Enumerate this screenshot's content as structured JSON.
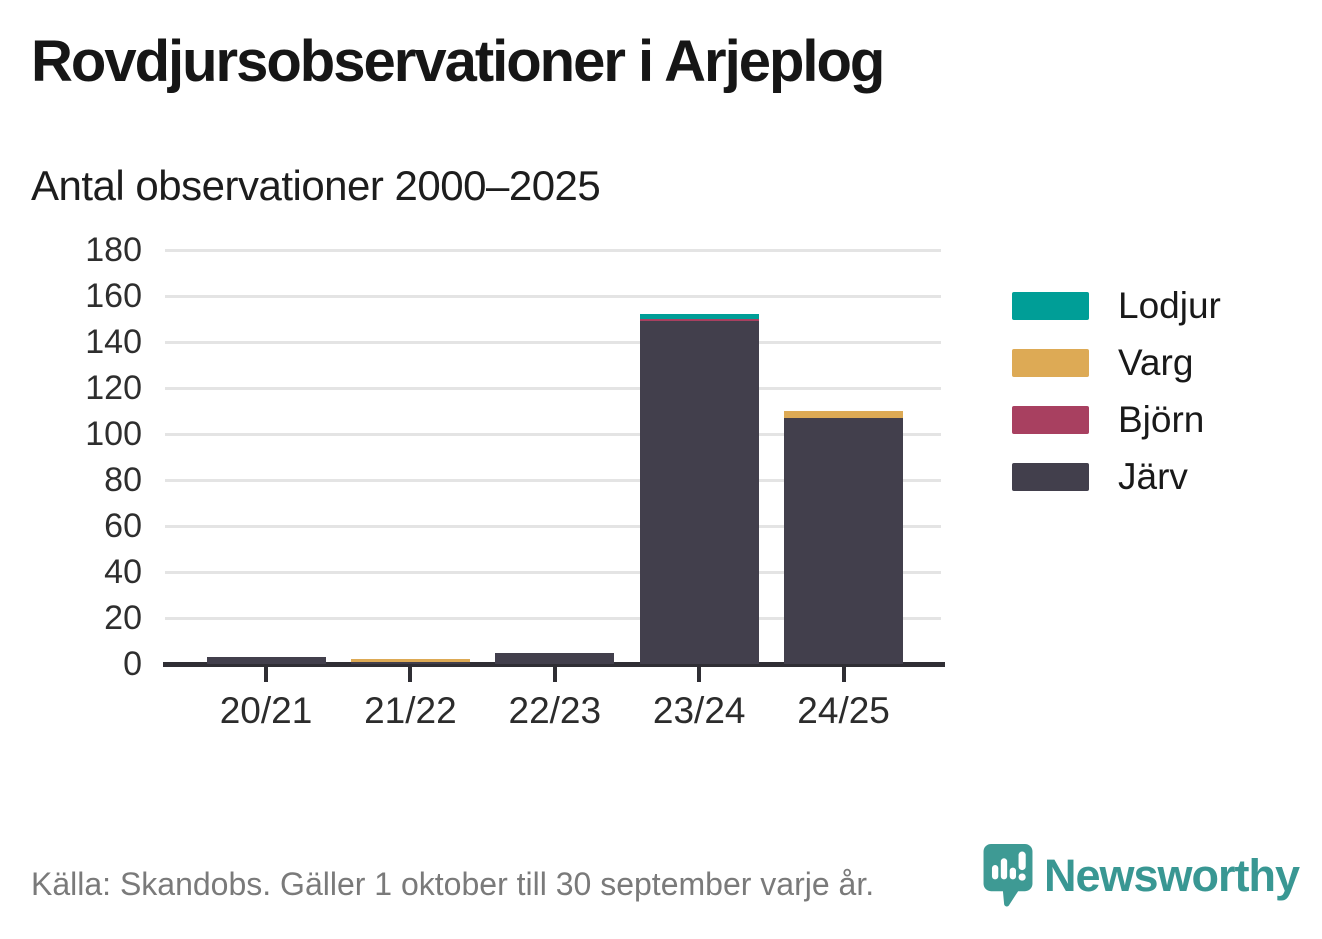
{
  "header": {
    "title": "Rovdjursobservationer i Arjeplog"
  },
  "chart_data": {
    "type": "bar",
    "stacked": true,
    "title": "Antal observationer 2000–2025",
    "categories": [
      "20/21",
      "21/22",
      "22/23",
      "23/24",
      "24/25"
    ],
    "series": [
      {
        "name": "Lodjur",
        "color": "#009e97",
        "values": [
          0,
          0,
          0,
          2,
          0
        ]
      },
      {
        "name": "Varg",
        "color": "#ddaa55",
        "values": [
          0,
          1,
          0,
          0,
          3
        ]
      },
      {
        "name": "Björn",
        "color": "#a84060",
        "values": [
          0,
          0,
          0,
          1,
          0
        ]
      },
      {
        "name": "Järv",
        "color": "#423f4c",
        "values": [
          3,
          1,
          5,
          149,
          107
        ]
      }
    ],
    "totals": [
      3,
      2,
      5,
      152,
      110
    ],
    "stack_order_bottom_to_top": [
      "Järv",
      "Björn",
      "Varg",
      "Lodjur"
    ],
    "ylim": [
      0,
      180
    ],
    "yticks": [
      0,
      20,
      40,
      60,
      80,
      100,
      120,
      140,
      160,
      180
    ],
    "xlabel": "",
    "ylabel": "",
    "grid": "horizontal",
    "legend_position": "right"
  },
  "colors": {
    "grid": "#e4e4e4",
    "axis_baseline": "#2f2e34",
    "axis_text": "#2e2e2e",
    "title_text": "#161616",
    "footer_text": "#7a7a7a",
    "brand_teal": "#399793"
  },
  "footer": {
    "source": "Källa: Skandobs. Gäller 1 oktober till 30 september varje år.",
    "brand": "Newsworthy",
    "logo_icon": "newsworthy-speech-bubble-bar-chart-icon"
  }
}
